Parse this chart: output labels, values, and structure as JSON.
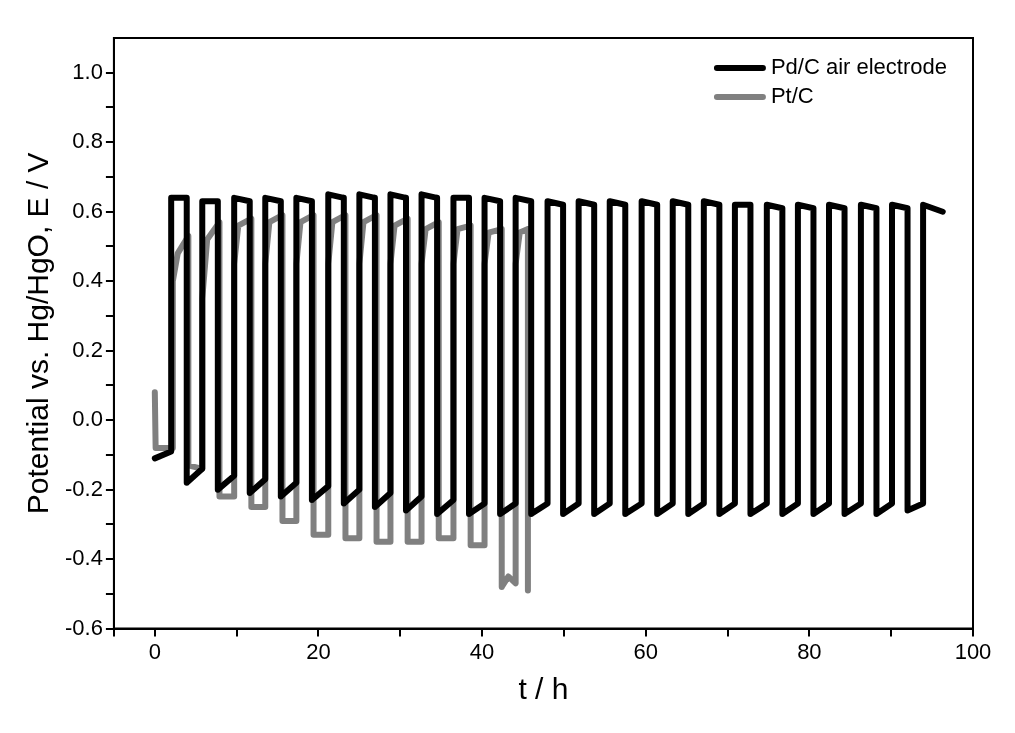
{
  "chart_data": {
    "type": "line",
    "xlabel": "t / h",
    "ylabel": "Potential vs. Hg/HgO, E / V",
    "xlim": [
      -5,
      100
    ],
    "ylim": [
      -0.6,
      1.1
    ],
    "xticks": [
      {
        "value": -5,
        "label": null
      },
      0,
      {
        "value": 10,
        "label": null
      },
      20,
      {
        "value": 30,
        "label": null
      },
      40,
      {
        "value": 50,
        "label": null
      },
      60,
      {
        "value": 70,
        "label": null
      },
      80,
      {
        "value": 90,
        "label": null
      },
      100
    ],
    "yticks": [
      {
        "value": -0.6,
        "label": "-0.6"
      },
      {
        "value": -0.5,
        "label": null
      },
      {
        "value": -0.4,
        "label": "-0.4"
      },
      {
        "value": -0.3,
        "label": null
      },
      {
        "value": -0.2,
        "label": "-0.2"
      },
      {
        "value": -0.1,
        "label": null
      },
      {
        "value": 0,
        "label": "0.0"
      },
      {
        "value": 0.1,
        "label": null
      },
      {
        "value": 0.2,
        "label": "0.2"
      },
      {
        "value": 0.3,
        "label": null
      },
      {
        "value": 0.4,
        "label": "0.4"
      },
      {
        "value": 0.5,
        "label": null
      },
      {
        "value": 0.6,
        "label": "0.6"
      },
      {
        "value": 0.7,
        "label": null
      },
      {
        "value": 0.8,
        "label": "0.8"
      },
      {
        "value": 0.9,
        "label": null
      },
      {
        "value": 1,
        "label": "1.0"
      }
    ],
    "grid": false,
    "legend": "top right",
    "marker": "none",
    "line_style": "solid",
    "series": [
      {
        "name": "Pd/C air electrode",
        "color": "#000000",
        "x": [
          0,
          2.0,
          2.0,
          3.9,
          3.9,
          5.8,
          5.8,
          7.7,
          7.7,
          9.7,
          9.7,
          11.6,
          11.6,
          13.5,
          13.5,
          15.4,
          15.4,
          17.3,
          17.3,
          19.2,
          19.2,
          21.2,
          21.2,
          23.1,
          23.1,
          25.0,
          25.0,
          26.9,
          26.9,
          28.8,
          28.8,
          30.7,
          30.7,
          32.6,
          32.6,
          34.5,
          34.5,
          36.5,
          36.5,
          38.4,
          38.4,
          40.3,
          40.3,
          42.2,
          42.2,
          44.1,
          44.1,
          46.0,
          46.0,
          48.0,
          48.0,
          49.9,
          49.9,
          51.8,
          51.8,
          53.7,
          53.7,
          55.6,
          55.6,
          57.5,
          57.5,
          59.5,
          59.5,
          61.4,
          61.4,
          63.3,
          63.3,
          65.2,
          65.2,
          67.1,
          67.1,
          69.0,
          69.0,
          70.9,
          70.9,
          72.8,
          72.8,
          74.8,
          74.8,
          76.7,
          76.7,
          78.6,
          78.6,
          80.5,
          80.5,
          82.4,
          82.4,
          84.3,
          84.3,
          86.3,
          86.3,
          88.2,
          88.2,
          90.1,
          90.1,
          92.0,
          92.0,
          93.9,
          93.9,
          96.3
        ],
        "values": [
          -0.11,
          -0.09,
          0.64,
          0.64,
          -0.18,
          -0.14,
          0.63,
          0.63,
          -0.2,
          -0.16,
          0.64,
          0.63,
          -0.21,
          -0.17,
          0.64,
          0.63,
          -0.22,
          -0.18,
          0.64,
          0.63,
          -0.23,
          -0.19,
          0.65,
          0.64,
          -0.24,
          -0.2,
          0.65,
          0.64,
          -0.25,
          -0.21,
          0.65,
          0.64,
          -0.26,
          -0.22,
          0.65,
          0.64,
          -0.27,
          -0.23,
          0.64,
          0.64,
          -0.27,
          -0.24,
          0.64,
          0.63,
          -0.27,
          -0.24,
          0.64,
          0.63,
          -0.27,
          -0.24,
          0.63,
          0.62,
          -0.27,
          -0.24,
          0.63,
          0.62,
          -0.27,
          -0.24,
          0.63,
          0.62,
          -0.27,
          -0.24,
          0.63,
          0.62,
          -0.27,
          -0.24,
          0.63,
          0.62,
          -0.27,
          -0.24,
          0.63,
          0.62,
          -0.27,
          -0.24,
          0.62,
          0.62,
          -0.27,
          -0.24,
          0.62,
          0.61,
          -0.27,
          -0.24,
          0.62,
          0.61,
          -0.27,
          -0.24,
          0.62,
          0.61,
          -0.27,
          -0.24,
          0.62,
          0.61,
          -0.27,
          -0.24,
          0.62,
          0.61,
          -0.26,
          -0.24,
          0.62,
          0.6
        ]
      },
      {
        "name": "Pt/C",
        "color": "#808080",
        "x": [
          0,
          0.1,
          2.2,
          2.2,
          2.8,
          4.1,
          4.1,
          5.8,
          5.8,
          6.4,
          7.9,
          7.9,
          9.7,
          9.7,
          10.2,
          11.8,
          11.8,
          13.5,
          13.5,
          14.0,
          15.6,
          15.6,
          17.3,
          17.3,
          17.8,
          19.4,
          19.4,
          21.2,
          21.2,
          21.7,
          23.3,
          23.3,
          25.0,
          25.0,
          25.5,
          27.1,
          27.1,
          28.8,
          28.8,
          29.3,
          30.9,
          30.9,
          32.6,
          32.6,
          33.1,
          34.7,
          34.7,
          36.5,
          36.5,
          37.0,
          38.6,
          38.6,
          40.3,
          40.3,
          40.8,
          42.4,
          42.4,
          43.2,
          44.1,
          44.1,
          44.6,
          45.6,
          45.6
        ],
        "values": [
          0.08,
          -0.08,
          -0.08,
          0.4,
          0.48,
          0.53,
          -0.13,
          -0.14,
          0.35,
          0.52,
          0.57,
          -0.22,
          -0.22,
          0.45,
          0.56,
          0.58,
          -0.25,
          -0.25,
          0.45,
          0.57,
          0.59,
          -0.29,
          -0.29,
          0.45,
          0.57,
          0.59,
          -0.33,
          -0.33,
          0.45,
          0.57,
          0.59,
          -0.34,
          -0.34,
          0.45,
          0.57,
          0.59,
          -0.35,
          -0.35,
          0.45,
          0.56,
          0.58,
          -0.35,
          -0.35,
          0.45,
          0.55,
          0.57,
          -0.34,
          -0.34,
          0.45,
          0.55,
          0.56,
          -0.36,
          -0.36,
          0.45,
          0.54,
          0.55,
          -0.48,
          -0.45,
          -0.47,
          0.45,
          0.54,
          0.55,
          -0.49
        ]
      }
    ]
  }
}
